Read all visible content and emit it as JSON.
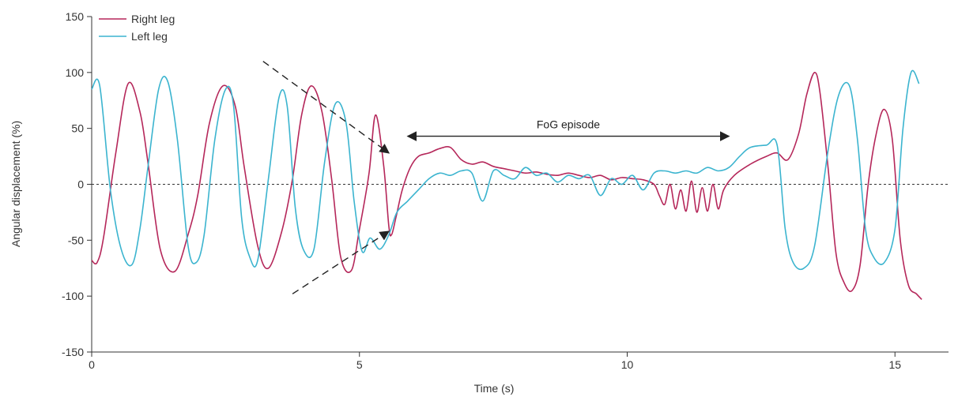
{
  "chart_data": {
    "type": "line",
    "title": "",
    "xlabel": "Time (s)",
    "ylabel": "Angular displacement (%)",
    "xlim": [
      0,
      16
    ],
    "ylim": [
      -150,
      150
    ],
    "x_ticks": [
      0,
      5,
      10,
      15
    ],
    "y_ticks": [
      -150,
      -100,
      -50,
      0,
      50,
      100,
      150
    ],
    "zero_line": true,
    "legend": {
      "position": "top-left"
    },
    "series": [
      {
        "name": "Right leg",
        "color": "#b5275a",
        "x": [
          0,
          0.1,
          0.22,
          0.45,
          0.68,
          0.9,
          1.05,
          1.28,
          1.55,
          1.8,
          1.98,
          2.2,
          2.45,
          2.68,
          2.85,
          3.1,
          3.3,
          3.55,
          3.75,
          3.92,
          4.1,
          4.3,
          4.48,
          4.65,
          4.85,
          5.0,
          5.18,
          5.3,
          5.45,
          5.55,
          5.6,
          5.68,
          5.8,
          5.95,
          6.1,
          6.3,
          6.5,
          6.7,
          6.9,
          7.1,
          7.3,
          7.5,
          7.7,
          7.9,
          8.1,
          8.3,
          8.5,
          8.7,
          8.9,
          9.1,
          9.3,
          9.5,
          9.7,
          9.9,
          10.1,
          10.3,
          10.5,
          10.6,
          10.7,
          10.8,
          10.9,
          11.0,
          11.1,
          11.2,
          11.3,
          11.4,
          11.5,
          11.6,
          11.7,
          11.8,
          12.0,
          12.3,
          12.6,
          12.8,
          13.0,
          13.2,
          13.35,
          13.5,
          13.6,
          13.75,
          13.9,
          14.05,
          14.2,
          14.35,
          14.5,
          14.65,
          14.8,
          14.95,
          15.1,
          15.25,
          15.4,
          15.5
        ],
        "values": [
          -68,
          -70,
          -48,
          28,
          90,
          65,
          20,
          -58,
          -78,
          -45,
          -10,
          55,
          88,
          70,
          15,
          -55,
          -75,
          -42,
          5,
          62,
          88,
          65,
          5,
          -65,
          -77,
          -40,
          10,
          62,
          18,
          -38,
          -45,
          -30,
          -5,
          15,
          25,
          28,
          32,
          33,
          22,
          18,
          20,
          16,
          14,
          12,
          10,
          11,
          9,
          8,
          10,
          8,
          6,
          8,
          4,
          6,
          5,
          4,
          0,
          -10,
          -18,
          0,
          -22,
          -5,
          -24,
          3,
          -25,
          -3,
          -24,
          0,
          -22,
          -5,
          8,
          18,
          25,
          28,
          22,
          45,
          80,
          100,
          82,
          15,
          -62,
          -88,
          -95,
          -72,
          0,
          45,
          67,
          40,
          -50,
          -90,
          -98,
          -103
        ]
      },
      {
        "name": "Left leg",
        "color": "#3bb4cf",
        "x": [
          0,
          0.15,
          0.35,
          0.55,
          0.75,
          0.9,
          1.05,
          1.25,
          1.42,
          1.6,
          1.8,
          1.95,
          2.1,
          2.3,
          2.5,
          2.65,
          2.8,
          2.95,
          3.1,
          3.3,
          3.5,
          3.65,
          3.8,
          3.95,
          4.15,
          4.35,
          4.55,
          4.75,
          4.9,
          5.05,
          5.2,
          5.38,
          5.55,
          5.7,
          5.9,
          6.1,
          6.3,
          6.5,
          6.7,
          6.9,
          7.1,
          7.3,
          7.5,
          7.7,
          7.9,
          8.1,
          8.3,
          8.5,
          8.7,
          8.9,
          9.1,
          9.3,
          9.5,
          9.7,
          9.9,
          10.1,
          10.3,
          10.5,
          10.7,
          10.9,
          11.1,
          11.3,
          11.5,
          11.7,
          11.9,
          12.1,
          12.3,
          12.6,
          12.8,
          12.95,
          13.1,
          13.3,
          13.5,
          13.75,
          13.95,
          14.15,
          14.3,
          14.45,
          14.6,
          14.8,
          15.0,
          15.15,
          15.3,
          15.45
        ],
        "values": [
          85,
          88,
          -5,
          -58,
          -72,
          -40,
          15,
          85,
          92,
          40,
          -55,
          -70,
          -45,
          40,
          85,
          70,
          -30,
          -65,
          -68,
          5,
          78,
          70,
          -20,
          -58,
          -58,
          20,
          72,
          55,
          -15,
          -60,
          -48,
          -58,
          -45,
          -25,
          -15,
          -5,
          5,
          10,
          8,
          12,
          10,
          -15,
          12,
          8,
          5,
          15,
          8,
          10,
          2,
          8,
          5,
          8,
          -10,
          5,
          0,
          8,
          -5,
          10,
          12,
          10,
          12,
          10,
          15,
          12,
          15,
          25,
          33,
          35,
          35,
          -40,
          -70,
          -75,
          -55,
          30,
          80,
          88,
          40,
          -40,
          -65,
          -70,
          -40,
          50,
          100,
          90
        ]
      }
    ],
    "annotations": [
      {
        "text": "FoG episode",
        "x_start": 5.9,
        "x_end": 11.9,
        "y": 43
      },
      {
        "type": "dashed-converging-lines",
        "upper": {
          "from": [
            3.2,
            110
          ],
          "to": [
            5.55,
            28
          ]
        },
        "lower": {
          "from": [
            3.75,
            -98
          ],
          "to": [
            5.55,
            -42
          ]
        }
      }
    ]
  }
}
